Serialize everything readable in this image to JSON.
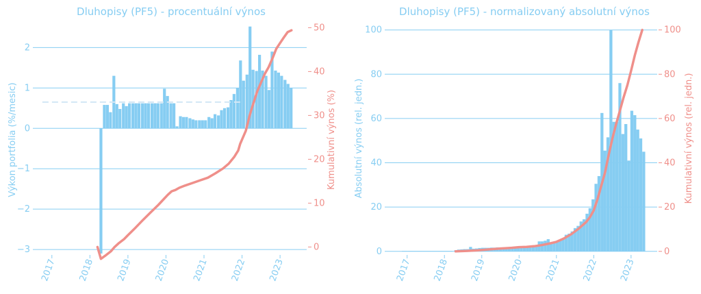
{
  "chart_data": [
    {
      "type": "bar",
      "title": "Dluhopisy (PF5) - procentuální výnos",
      "ylabel": "Výkon portfolia (%/mesic)",
      "y2label": "Kumulativní výnos (%)",
      "xticks": [
        "2017",
        "2018",
        "2019",
        "2020",
        "2021",
        "2022",
        "2023"
      ],
      "yticks": [
        "−3",
        "−2",
        "−1",
        "0",
        "1",
        "2"
      ],
      "y2ticks": [
        "0",
        "10",
        "20",
        "30",
        "40",
        "50"
      ],
      "ylim": [
        -3.1,
        2.6
      ],
      "y2lim": [
        -1.5,
        51
      ],
      "xlim": [
        2016.5,
        2023.7
      ],
      "average_line": 0.65,
      "bar_x": [
        2018.29,
        2018.38,
        2018.46,
        2018.54,
        2018.63,
        2018.71,
        2018.79,
        2018.88,
        2018.96,
        2019.04,
        2019.13,
        2019.21,
        2019.29,
        2019.38,
        2019.46,
        2019.54,
        2019.63,
        2019.71,
        2019.79,
        2019.88,
        2019.96,
        2020.04,
        2020.13,
        2020.21,
        2020.29,
        2020.38,
        2020.46,
        2020.54,
        2020.63,
        2020.71,
        2020.79,
        2020.88,
        2020.96,
        2021.04,
        2021.13,
        2021.21,
        2021.29,
        2021.38,
        2021.46,
        2021.54,
        2021.63,
        2021.71,
        2021.79,
        2021.88,
        2021.96,
        2022.04,
        2022.13,
        2022.21,
        2022.29,
        2022.38,
        2022.46,
        2022.54,
        2022.63,
        2022.71,
        2022.79,
        2022.88,
        2022.96,
        2023.04,
        2023.13,
        2023.21,
        2023.29
      ],
      "bar_values": [
        -3.1,
        0.58,
        0.58,
        0.4,
        1.3,
        0.6,
        0.48,
        0.62,
        0.55,
        0.62,
        0.62,
        0.62,
        0.62,
        0.62,
        0.62,
        0.62,
        0.62,
        0.62,
        0.62,
        0.62,
        0.98,
        0.8,
        0.62,
        0.62,
        0.05,
        0.3,
        0.28,
        0.28,
        0.25,
        0.22,
        0.2,
        0.2,
        0.2,
        0.2,
        0.28,
        0.25,
        0.35,
        0.32,
        0.45,
        0.5,
        0.52,
        0.7,
        0.85,
        1.0,
        1.68,
        1.18,
        1.33,
        2.52,
        1.45,
        1.42,
        1.82,
        1.43,
        1.3,
        0.95,
        1.9,
        1.43,
        1.38,
        1.3,
        1.2,
        1.1,
        1.0
      ],
      "line_x": [
        2018.2,
        2018.29,
        2018.4,
        2018.55,
        2018.65,
        2018.75,
        2018.9,
        2019.0,
        2019.2,
        2019.4,
        2019.6,
        2019.8,
        2019.95,
        2020.05,
        2020.15,
        2020.25,
        2020.35,
        2020.5,
        2020.7,
        2020.9,
        2021.1,
        2021.3,
        2021.5,
        2021.65,
        2021.8,
        2021.9,
        2021.95,
        2022.0,
        2022.1,
        2022.2,
        2022.3,
        2022.4,
        2022.5,
        2022.6,
        2022.7,
        2022.8,
        2022.9,
        2023.0,
        2023.1,
        2023.2,
        2023.3
      ],
      "line_values": [
        0,
        -2.7,
        -2.0,
        -1.0,
        0,
        0.8,
        1.8,
        2.7,
        4.4,
        6.2,
        7.9,
        9.6,
        11.0,
        11.9,
        12.7,
        13.0,
        13.5,
        14.0,
        14.6,
        15.2,
        15.8,
        16.8,
        17.9,
        19.0,
        20.6,
        22.0,
        23.5,
        24.5,
        26.5,
        30.0,
        32.8,
        35.5,
        37.5,
        39.5,
        41.0,
        43.0,
        45.2,
        46.5,
        47.8,
        49.0,
        49.4
      ],
      "bar_color": "#86cdf2",
      "line_color": "#ef8f8a",
      "grid": true
    },
    {
      "type": "bar",
      "title": "Dluhopisy (PF5) - normalizovaný absolutní výnos",
      "ylabel": "Absolutní výnos (rel. jedn.)",
      "y2label": "Kumulativní výnos (rel. jedn.)",
      "xticks": [
        "2017",
        "2018",
        "2019",
        "2020",
        "2021",
        "2022",
        "2023"
      ],
      "yticks": [
        "0",
        "20",
        "40",
        "60",
        "80",
        "100"
      ],
      "y2ticks": [
        "0",
        "20",
        "40",
        "60",
        "80",
        "100"
      ],
      "ylim": [
        -1,
        103
      ],
      "y2lim": [
        -1,
        103
      ],
      "xlim": [
        2016.4,
        2023.7
      ],
      "bar_x": [
        2016.9,
        2016.98,
        2017.06,
        2017.14,
        2017.22,
        2017.3,
        2017.38,
        2017.46,
        2017.54,
        2017.62,
        2017.7,
        2017.78,
        2017.86,
        2017.94,
        2018.02,
        2018.1,
        2018.18,
        2018.3,
        2018.38,
        2018.46,
        2018.54,
        2018.62,
        2018.7,
        2018.78,
        2018.86,
        2018.94,
        2019.02,
        2019.1,
        2019.18,
        2019.26,
        2019.34,
        2019.42,
        2019.5,
        2019.58,
        2019.66,
        2019.74,
        2019.82,
        2019.9,
        2019.98,
        2020.06,
        2020.14,
        2020.22,
        2020.3,
        2020.38,
        2020.46,
        2020.54,
        2020.62,
        2020.7,
        2020.78,
        2020.86,
        2020.94,
        2021.02,
        2021.1,
        2021.18,
        2021.26,
        2021.34,
        2021.42,
        2021.5,
        2021.58,
        2021.66,
        2021.74,
        2021.82,
        2021.9,
        2021.98,
        2022.06,
        2022.14,
        2022.22,
        2022.3,
        2022.38,
        2022.46,
        2022.54,
        2022.62,
        2022.7,
        2022.78,
        2022.86,
        2022.94,
        2023.02,
        2023.1,
        2023.18,
        2023.26,
        2023.34
      ],
      "bar_values": [
        0.2,
        0.2,
        0.2,
        0.2,
        0.2,
        0.2,
        0.2,
        0.2,
        0.2,
        0.2,
        0.2,
        0.2,
        0.2,
        0.2,
        0.2,
        0.2,
        0.2,
        0.5,
        0.8,
        0.9,
        1.0,
        1.0,
        2.0,
        1.2,
        1.3,
        1.5,
        1.6,
        1.6,
        1.6,
        1.7,
        1.7,
        1.8,
        1.8,
        1.8,
        1.9,
        1.9,
        1.9,
        2.0,
        2.0,
        2.1,
        2.1,
        2.2,
        2.3,
        2.5,
        2.8,
        4.5,
        4.5,
        4.8,
        5.5,
        4.0,
        4.2,
        4.5,
        5.0,
        5.5,
        7.5,
        8.0,
        9.0,
        10.5,
        11.5,
        13.5,
        14.5,
        17.0,
        19.5,
        23.5,
        30.5,
        34.0,
        62.5,
        45.5,
        51.5,
        100.0,
        58.5,
        58.5,
        76.0,
        53.0,
        57.5,
        41.0,
        63.5,
        61.5,
        55.0,
        51.0,
        45.0
      ],
      "line_x": [
        2018.3,
        2018.6,
        2018.9,
        2019.2,
        2019.5,
        2019.8,
        2020.0,
        2020.2,
        2020.4,
        2020.6,
        2020.8,
        2021.0,
        2021.2,
        2021.4,
        2021.6,
        2021.8,
        2021.9,
        2022.0,
        2022.1,
        2022.2,
        2022.3,
        2022.4,
        2022.5,
        2022.6,
        2022.7,
        2022.8,
        2022.9,
        2023.0,
        2023.1,
        2023.2,
        2023.3
      ],
      "line_values": [
        0,
        0.2,
        0.5,
        0.9,
        1.3,
        1.6,
        1.9,
        2.0,
        2.3,
        2.8,
        3.5,
        4.3,
        5.8,
        7.8,
        10.3,
        13.3,
        15.5,
        18.5,
        23.5,
        29.5,
        35.5,
        43.5,
        51.0,
        57.5,
        63.5,
        69.5,
        75.0,
        81.5,
        88.5,
        94.5,
        100.0
      ],
      "bar_color": "#86cdf2",
      "line_color": "#ef8f8a",
      "grid": true
    }
  ]
}
